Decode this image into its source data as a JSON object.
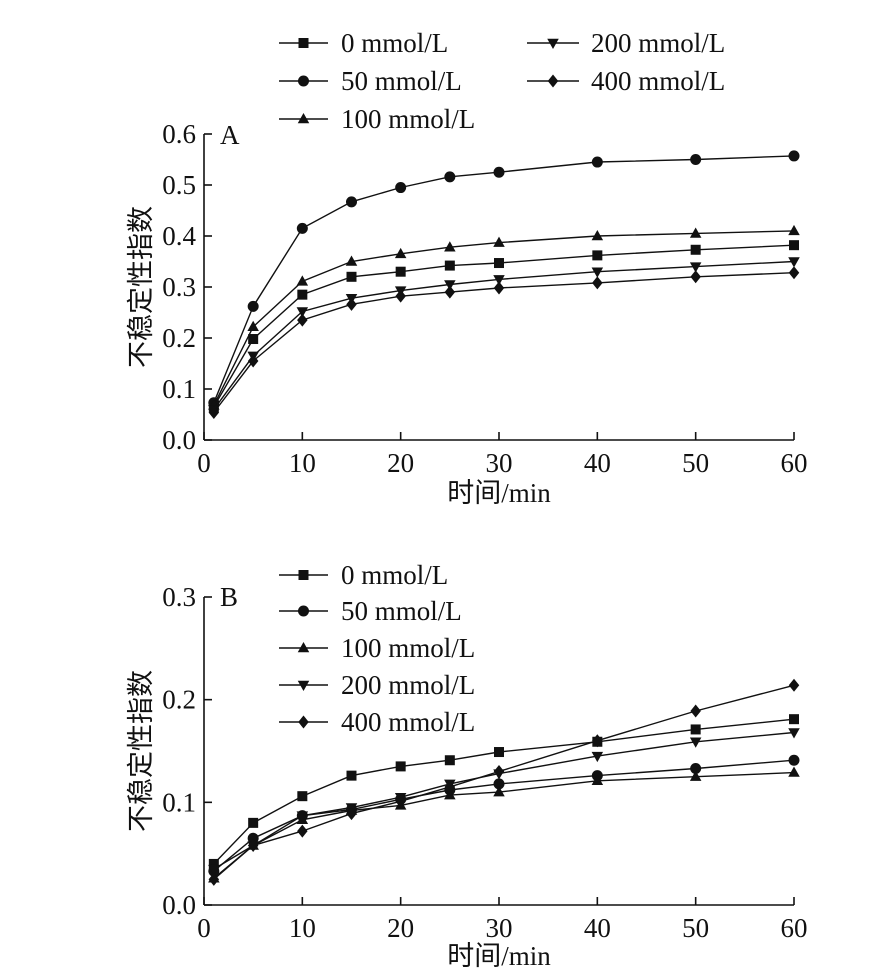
{
  "chart_data": [
    {
      "type": "line",
      "panel_label": "A",
      "xlabel": "时间/min",
      "ylabel": "不稳定性指数",
      "xlim": [
        0,
        60
      ],
      "ylim": [
        0.0,
        0.6
      ],
      "xticks": [
        "0",
        "10",
        "20",
        "30",
        "40",
        "50",
        "60"
      ],
      "yticks": [
        "0.0",
        "0.1",
        "0.2",
        "0.3",
        "0.4",
        "0.5",
        "0.6"
      ],
      "grid": false,
      "legend_position": "top",
      "x": [
        1,
        5,
        10,
        15,
        20,
        25,
        30,
        40,
        50,
        60
      ],
      "series": [
        {
          "name": "0  mmol/L",
          "marker": "square",
          "values": [
            0.065,
            0.198,
            0.285,
            0.32,
            0.33,
            0.342,
            0.347,
            0.362,
            0.373,
            0.382
          ]
        },
        {
          "name": "50  mmol/L",
          "marker": "circle",
          "values": [
            0.073,
            0.262,
            0.415,
            0.467,
            0.495,
            0.516,
            0.525,
            0.545,
            0.55,
            0.557
          ]
        },
        {
          "name": "100  mmol/L",
          "marker": "triangle-up",
          "values": [
            0.068,
            0.222,
            0.311,
            0.35,
            0.365,
            0.378,
            0.387,
            0.4,
            0.405,
            0.41
          ]
        },
        {
          "name": "200  mmol/L",
          "marker": "triangle-down",
          "values": [
            0.06,
            0.165,
            0.252,
            0.278,
            0.293,
            0.305,
            0.315,
            0.33,
            0.34,
            0.35
          ]
        },
        {
          "name": "400  mmol/L",
          "marker": "diamond",
          "values": [
            0.054,
            0.155,
            0.235,
            0.266,
            0.282,
            0.29,
            0.298,
            0.308,
            0.32,
            0.328
          ]
        }
      ]
    },
    {
      "type": "line",
      "panel_label": "B",
      "xlabel": "时间/min",
      "ylabel": "不稳定性指数",
      "xlim": [
        0,
        60
      ],
      "ylim": [
        0.0,
        0.3
      ],
      "xticks": [
        "0",
        "10",
        "20",
        "30",
        "40",
        "50",
        "60"
      ],
      "yticks": [
        "0.0",
        "0.1",
        "0.2",
        "0.3"
      ],
      "grid": false,
      "legend_position": "top-left",
      "x": [
        1,
        5,
        10,
        15,
        20,
        25,
        30,
        40,
        50,
        60
      ],
      "series": [
        {
          "name": "0 mmol/L",
          "marker": "square",
          "values": [
            0.04,
            0.08,
            0.106,
            0.126,
            0.135,
            0.141,
            0.149,
            0.159,
            0.171,
            0.181
          ]
        },
        {
          "name": "50 mmol/L",
          "marker": "circle",
          "values": [
            0.033,
            0.065,
            0.087,
            0.093,
            0.103,
            0.112,
            0.118,
            0.126,
            0.133,
            0.141
          ]
        },
        {
          "name": "100 mmol/L",
          "marker": "triangle-up",
          "values": [
            0.026,
            0.058,
            0.083,
            0.092,
            0.097,
            0.107,
            0.11,
            0.121,
            0.125,
            0.129
          ]
        },
        {
          "name": "200 mmol/L",
          "marker": "triangle-down",
          "values": [
            0.035,
            0.058,
            0.087,
            0.095,
            0.105,
            0.118,
            0.128,
            0.145,
            0.159,
            0.168
          ]
        },
        {
          "name": "400 mmol/L",
          "marker": "diamond",
          "values": [
            0.025,
            0.058,
            0.072,
            0.089,
            0.101,
            0.115,
            0.13,
            0.16,
            0.189,
            0.214
          ]
        }
      ]
    }
  ]
}
